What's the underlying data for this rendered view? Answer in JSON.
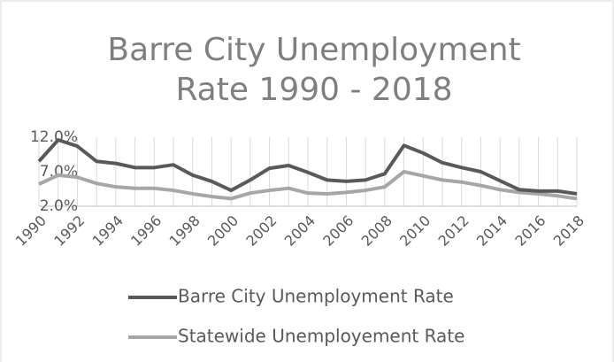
{
  "chart_data": {
    "type": "line",
    "title": "Barre City Unemployment Rate 1990 - 2018",
    "categories": [
      "1990",
      null,
      "1992",
      null,
      "1994",
      null,
      "1996",
      null,
      "1998",
      null,
      "2000",
      null,
      "2002",
      null,
      "2004",
      null,
      "2006",
      null,
      "2008",
      null,
      "2010",
      null,
      "2012",
      null,
      "2014",
      null,
      "2016",
      null,
      "2018"
    ],
    "series": [
      {
        "name": "Barre City Unemployment Rate",
        "color": "#595959",
        "values": [
          8.5,
          11.6,
          10.7,
          8.5,
          8.2,
          7.6,
          7.6,
          8.0,
          6.5,
          5.6,
          4.3,
          5.8,
          7.5,
          7.9,
          6.9,
          5.8,
          5.6,
          5.8,
          6.7,
          10.8,
          9.7,
          8.3,
          7.6,
          7.0,
          5.7,
          4.4,
          4.2,
          4.2,
          3.8
        ]
      },
      {
        "name": "Statewide Unemployement Rate",
        "color": "#a6a6a6",
        "values": [
          5.2,
          6.5,
          6.2,
          5.3,
          4.8,
          4.6,
          4.6,
          4.3,
          3.8,
          3.4,
          3.1,
          3.9,
          4.3,
          4.6,
          3.9,
          3.8,
          4.0,
          4.3,
          4.8,
          7.0,
          6.4,
          5.8,
          5.5,
          5.0,
          4.4,
          4.0,
          3.8,
          3.5,
          3.1
        ]
      }
    ],
    "ylim": [
      2,
      12
    ],
    "yticks": [
      {
        "value": 2,
        "label": "2.0%"
      },
      {
        "value": 7,
        "label": "7.0%"
      },
      {
        "value": 12,
        "label": "12.0%"
      }
    ],
    "x_grid": true,
    "legend": "bottom"
  }
}
